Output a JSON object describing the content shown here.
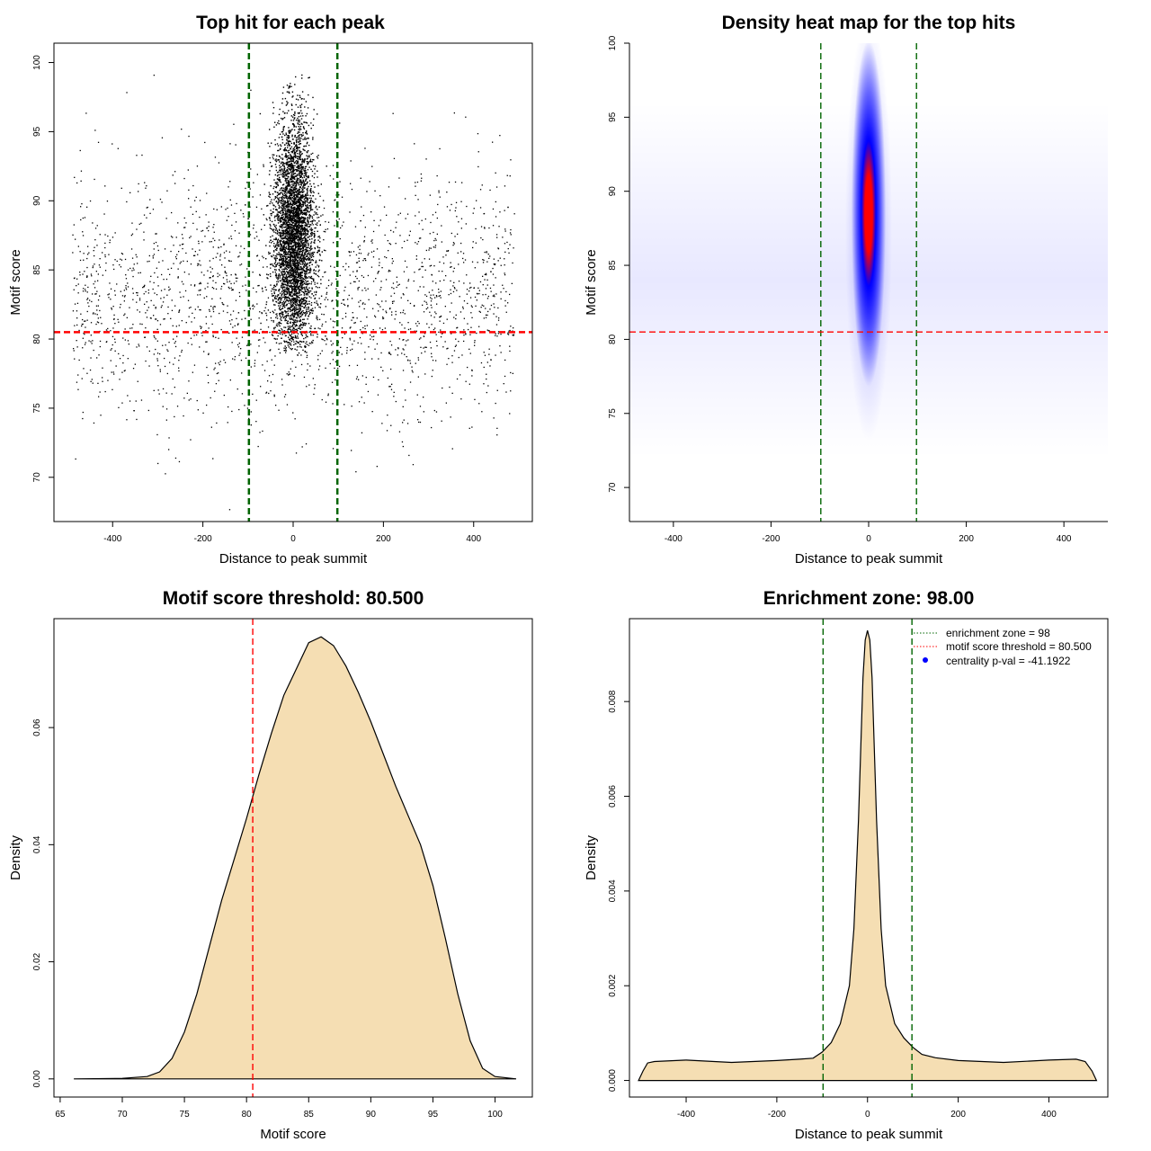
{
  "chart_data": [
    {
      "id": "scatter",
      "type": "scatter",
      "title": "Top hit for each peak",
      "xlabel": "Distance to peak summit",
      "ylabel": "Motif score",
      "xlim": [
        -530,
        530
      ],
      "ylim": [
        66.8,
        101.4
      ],
      "xticks": [
        -400,
        -200,
        0,
        200,
        400
      ],
      "yticks": [
        70,
        75,
        80,
        85,
        90,
        95,
        100
      ],
      "vlines": [
        {
          "x": -98,
          "color": "#006400"
        },
        {
          "x": 98,
          "color": "#006400"
        }
      ],
      "hlines": [
        {
          "y": 80.5,
          "color": "#ff0000"
        }
      ],
      "background_points": {
        "x_range": [
          -490,
          490
        ],
        "y_mean": 83,
        "y_sd": 4.5,
        "count": 2200
      },
      "central_cluster": {
        "x_mean": 0,
        "x_sd": 22,
        "y_mean": 87.5,
        "y_sd": 4.2,
        "count": 4200
      }
    },
    {
      "id": "heatmap",
      "type": "heatmap",
      "title": "Density heat map for the top hits",
      "xlabel": "Distance to peak summit",
      "ylabel": "Motif score",
      "xlim": [
        -490,
        490
      ],
      "ylim": [
        67.7,
        100
      ],
      "xticks": [
        -400,
        -200,
        0,
        200,
        400
      ],
      "yticks": [
        70,
        75,
        80,
        85,
        90,
        95,
        100
      ],
      "vlines": [
        {
          "x": -98,
          "color": "#006400"
        },
        {
          "x": 98,
          "color": "#006400"
        }
      ],
      "hlines": [
        {
          "y": 80.5,
          "color": "#ff0000"
        }
      ],
      "hotspot": {
        "x": 0,
        "y": 88.5,
        "x_sd": 16,
        "y_sd": 4.5
      },
      "colors": [
        "#ffffff",
        "#0000ff",
        "#ff0000"
      ]
    },
    {
      "id": "score-density",
      "type": "area",
      "title": "Motif score threshold: 80.500",
      "xlabel": "Motif score",
      "ylabel": "Density",
      "xlim": [
        64.5,
        103
      ],
      "ylim": [
        -0.0031,
        0.0786
      ],
      "xticks": [
        65,
        70,
        75,
        80,
        85,
        90,
        95,
        100
      ],
      "yticks": [
        0.0,
        0.02,
        0.04,
        0.06
      ],
      "ytick_labels": [
        "0.00",
        "0.02",
        "0.04",
        "0.06"
      ],
      "fill": "#f5deb3",
      "vlines": [
        {
          "x": 80.5,
          "color": "#ff0000"
        }
      ],
      "x": [
        66.1,
        70,
        72,
        73,
        74,
        75,
        76,
        77,
        78,
        79,
        80,
        81,
        82,
        83,
        84,
        85,
        86,
        87,
        88,
        89,
        90,
        91,
        92,
        93,
        94,
        95,
        96,
        97,
        98,
        99,
        100,
        101.7
      ],
      "values": [
        0.0,
        0.0001,
        0.0004,
        0.0012,
        0.0035,
        0.008,
        0.0145,
        0.0225,
        0.0305,
        0.0375,
        0.0445,
        0.052,
        0.059,
        0.0655,
        0.07,
        0.0745,
        0.0755,
        0.074,
        0.0705,
        0.066,
        0.061,
        0.0555,
        0.05,
        0.045,
        0.04,
        0.033,
        0.024,
        0.0145,
        0.0065,
        0.0018,
        0.0004,
        0.0
      ]
    },
    {
      "id": "distance-density",
      "type": "area",
      "title": "Enrichment zone: 98.00",
      "xlabel": "Distance to peak summit",
      "ylabel": "Density",
      "xlim": [
        -525,
        530
      ],
      "ylim": [
        -0.00035,
        0.00975
      ],
      "xticks": [
        -400,
        -200,
        0,
        200,
        400
      ],
      "yticks": [
        0.0,
        0.002,
        0.004,
        0.006,
        0.008
      ],
      "ytick_labels": [
        "0.000",
        "0.002",
        "0.004",
        "0.006",
        "0.008"
      ],
      "fill": "#f5deb3",
      "vlines": [
        {
          "x": -98,
          "color": "#006400"
        },
        {
          "x": 98,
          "color": "#006400"
        }
      ],
      "x": [
        -505,
        -495,
        -485,
        -470,
        -400,
        -300,
        -200,
        -150,
        -120,
        -100,
        -80,
        -60,
        -40,
        -30,
        -20,
        -10,
        -5,
        0,
        5,
        10,
        20,
        30,
        40,
        60,
        80,
        100,
        120,
        150,
        200,
        300,
        400,
        460,
        480,
        495,
        505
      ],
      "values": [
        0.0,
        0.0002,
        0.00037,
        0.0004,
        0.00043,
        0.00038,
        0.00042,
        0.00045,
        0.00047,
        0.0006,
        0.0008,
        0.0012,
        0.002,
        0.0032,
        0.0055,
        0.0085,
        0.0093,
        0.0095,
        0.0093,
        0.0085,
        0.0055,
        0.0032,
        0.002,
        0.0012,
        0.0009,
        0.0007,
        0.00055,
        0.00048,
        0.00042,
        0.00038,
        0.00043,
        0.00045,
        0.0004,
        0.0002,
        0.0
      ]
    }
  ],
  "legend": {
    "position": "top-right",
    "items": [
      {
        "label": "enrichment zone = 98",
        "color": "#006400",
        "style": "dotted-line"
      },
      {
        "label": "motif score threshold = 80.500",
        "color": "#ff0000",
        "style": "dotted-line"
      },
      {
        "label": "centrality p-val = -41.1922",
        "color": "#0000ff",
        "style": "dot"
      }
    ]
  }
}
